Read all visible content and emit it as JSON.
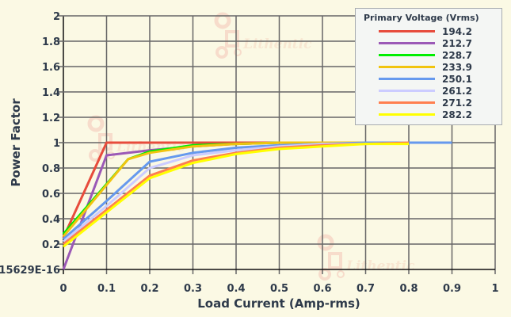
{
  "chart_data": {
    "type": "line",
    "title": "",
    "xlabel": "Load Current (Amp-rms)",
    "ylabel": "Power Factor",
    "xlim": [
      0,
      1
    ],
    "ylim": [
      0,
      2
    ],
    "x_ticks": [
      "0",
      "0.1",
      "0.2",
      "0.3",
      "0.4",
      "0.5",
      "0.6",
      "0.7",
      "0.8",
      "0.9",
      "1"
    ],
    "y_ticks": [
      "15629E-16",
      "0.2",
      "0.4",
      "0.6",
      "0.8",
      "1",
      "1.2",
      "1.4",
      "1.6",
      "1.8",
      "2"
    ],
    "grid": true,
    "legend_title": "Primary Voltage (Vrms)",
    "legend_position": "top-right",
    "series": [
      {
        "name": "194.2",
        "color": "#e74c3c",
        "x": [
          0,
          0.1,
          0.2,
          0.3,
          0.4,
          0.5,
          0.6,
          0.7,
          0.8
        ],
        "values": [
          0.25,
          1.0,
          1.0,
          1.0,
          1.0,
          1.0,
          1.0,
          1.0,
          1.0
        ]
      },
      {
        "name": "212.7",
        "color": "#9b59b6",
        "x": [
          0,
          0.1,
          0.2,
          0.3,
          0.4,
          0.5,
          0.6,
          0.7,
          0.8
        ],
        "values": [
          0.0,
          0.9,
          0.94,
          0.97,
          0.99,
          1.0,
          1.0,
          1.0,
          1.0
        ]
      },
      {
        "name": "228.7",
        "color": "#00ee00",
        "x": [
          0,
          0.15,
          0.2,
          0.3,
          0.4,
          0.5,
          0.6,
          0.7,
          0.8
        ],
        "values": [
          0.28,
          0.87,
          0.93,
          0.98,
          0.99,
          1.0,
          1.0,
          1.0,
          1.0
        ]
      },
      {
        "name": "233.9",
        "color": "#f1c40f",
        "x": [
          0,
          0.15,
          0.2,
          0.3,
          0.4,
          0.5,
          0.6,
          0.7,
          0.8
        ],
        "values": [
          0.26,
          0.87,
          0.92,
          0.97,
          0.99,
          1.0,
          1.0,
          1.0,
          1.0
        ]
      },
      {
        "name": "250.1",
        "color": "#6699ee",
        "x": [
          0,
          0.1,
          0.2,
          0.3,
          0.4,
          0.5,
          0.6,
          0.7,
          0.8,
          0.9
        ],
        "values": [
          0.24,
          0.54,
          0.85,
          0.92,
          0.96,
          0.98,
          0.99,
          1.0,
          1.0,
          1.0
        ]
      },
      {
        "name": "261.2",
        "color": "#ccccff",
        "x": [
          0,
          0.1,
          0.2,
          0.3,
          0.4,
          0.5,
          0.6,
          0.7,
          0.8
        ],
        "values": [
          0.22,
          0.5,
          0.8,
          0.9,
          0.94,
          0.97,
          0.99,
          0.99,
          1.0
        ]
      },
      {
        "name": "271.2",
        "color": "#ff7f50",
        "x": [
          0,
          0.1,
          0.2,
          0.3,
          0.4,
          0.5,
          0.6,
          0.7,
          0.8
        ],
        "values": [
          0.2,
          0.47,
          0.74,
          0.86,
          0.92,
          0.96,
          0.98,
          0.99,
          1.0
        ]
      },
      {
        "name": "282.2",
        "color": "#ffff00",
        "x": [
          0,
          0.1,
          0.2,
          0.3,
          0.4,
          0.5,
          0.6,
          0.7,
          0.8
        ],
        "values": [
          0.18,
          0.45,
          0.72,
          0.84,
          0.91,
          0.95,
          0.97,
          0.99,
          0.99
        ]
      }
    ]
  },
  "watermark": "Lithentic"
}
